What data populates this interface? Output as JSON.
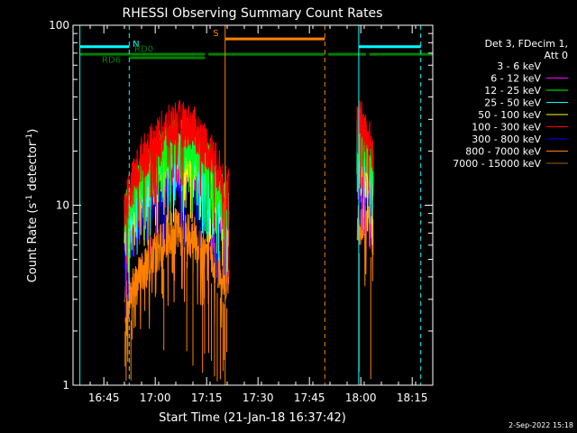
{
  "chart_data": {
    "type": "line",
    "title": "RHESSI Observing Summary Count Rates",
    "xlabel": "Start Time (21-Jan-18 16:37:42)",
    "ylabel_main": "Count Rate (s",
    "ylabel_sup": "-1",
    "ylabel_tail": " detector",
    "ylabel_sup2": "-1",
    "ylabel_end": ")",
    "ylim": [
      1,
      100
    ],
    "yscale": "log",
    "xlim_minutes": [
      -2,
      103
    ],
    "x_ticks": [
      {
        "t": 7,
        "label": "16:45"
      },
      {
        "t": 22,
        "label": "17:00"
      },
      {
        "t": 37,
        "label": "17:15"
      },
      {
        "t": 52,
        "label": "17:30"
      },
      {
        "t": 67,
        "label": "17:45"
      },
      {
        "t": 82,
        "label": "18:00"
      },
      {
        "t": 97,
        "label": "18:15"
      }
    ],
    "y_ticks": [
      {
        "v": 1,
        "label": "1"
      },
      {
        "v": 10,
        "label": "10"
      },
      {
        "v": 100,
        "label": "100"
      }
    ],
    "legend": {
      "header1": "Det 3, FDecim 1,",
      "header2": "Att 0",
      "entries": [
        {
          "label": "3 - 6 keV",
          "color": "#000000"
        },
        {
          "label": "6 - 12 keV",
          "color": "#ff00ff"
        },
        {
          "label": "12 - 25 keV",
          "color": "#00ff00"
        },
        {
          "label": "25 - 50 keV",
          "color": "#00ffff"
        },
        {
          "label": "50 - 100 keV",
          "color": "#ffff00"
        },
        {
          "label": "100 - 300 keV",
          "color": "#ff0000"
        },
        {
          "label": "300 - 800 keV",
          "color": "#0000ff"
        },
        {
          "label": "800 - 7000 keV",
          "color": "#ff8000"
        },
        {
          "label": "7000 - 15000 keV",
          "color": "#a06000"
        }
      ]
    },
    "segments": [
      {
        "start": 13.0,
        "end": 43.5
      },
      {
        "start": 80.9,
        "end": 85.6
      }
    ],
    "series": [
      {
        "color": "#ff8000",
        "seg1": [
          [
            13,
            2.8
          ],
          [
            18,
            4.2
          ],
          [
            24,
            6.2
          ],
          [
            28,
            7.2
          ],
          [
            33,
            6.8
          ],
          [
            38,
            5.4
          ],
          [
            43,
            3.8
          ]
        ],
        "seg2": [
          [
            81,
            7.5
          ],
          [
            83,
            8.5
          ],
          [
            85.5,
            7.0
          ]
        ]
      },
      {
        "color": "#0000ff",
        "seg1": [
          [
            13,
            5.2
          ],
          [
            18,
            9.5
          ],
          [
            24,
            13.0
          ],
          [
            28,
            14.8
          ],
          [
            33,
            13.8
          ],
          [
            38,
            10.5
          ],
          [
            43,
            6.2
          ]
        ],
        "seg2": [
          [
            81,
            15.5
          ],
          [
            83,
            14.0
          ],
          [
            85.5,
            11.0
          ]
        ]
      },
      {
        "color": "#ff00ff",
        "seg1": [
          [
            13,
            6.5
          ],
          [
            18,
            11.5
          ],
          [
            24,
            15.5
          ],
          [
            28,
            17.5
          ],
          [
            33,
            16.5
          ],
          [
            38,
            12.5
          ],
          [
            43,
            7.5
          ]
        ],
        "seg2": [
          [
            81,
            18.0
          ],
          [
            83,
            16.5
          ],
          [
            85.5,
            13.0
          ]
        ]
      },
      {
        "color": "#ffff00",
        "seg1": [
          [
            13,
            7.5
          ],
          [
            18,
            13.0
          ],
          [
            24,
            17.5
          ],
          [
            28,
            19.5
          ],
          [
            33,
            18.5
          ],
          [
            38,
            14.0
          ],
          [
            43,
            8.5
          ]
        ],
        "seg2": [
          [
            81,
            20.0
          ],
          [
            83,
            18.5
          ],
          [
            85.5,
            14.5
          ]
        ]
      },
      {
        "color": "#00ffff",
        "seg1": [
          [
            13,
            8.0
          ],
          [
            18,
            14.0
          ],
          [
            24,
            19.0
          ],
          [
            28,
            21.0
          ],
          [
            33,
            20.0
          ],
          [
            38,
            15.0
          ],
          [
            43,
            9.0
          ]
        ],
        "seg2": [
          [
            81,
            22.0
          ],
          [
            83,
            20.0
          ],
          [
            85.5,
            15.5
          ]
        ]
      },
      {
        "color": "#00ff00",
        "seg1": [
          [
            13,
            8.5
          ],
          [
            18,
            15.0
          ],
          [
            24,
            20.0
          ],
          [
            28,
            22.5
          ],
          [
            33,
            21.5
          ],
          [
            38,
            16.0
          ],
          [
            43,
            9.5
          ]
        ],
        "seg2": [
          [
            81,
            23.5
          ],
          [
            83,
            21.0
          ],
          [
            85.5,
            16.5
          ]
        ]
      },
      {
        "color": "#ff0000",
        "seg1": [
          [
            13,
            10.0
          ],
          [
            18,
            18.0
          ],
          [
            24,
            25.0
          ],
          [
            28,
            29.0
          ],
          [
            33,
            27.0
          ],
          [
            38,
            20.0
          ],
          [
            43,
            12.0
          ]
        ],
        "seg2": [
          [
            81,
            30.0
          ],
          [
            83,
            27.0
          ],
          [
            85.5,
            20.0
          ]
        ]
      }
    ],
    "spikes": [
      {
        "t": 42.6,
        "v": 16.5
      },
      {
        "t": 43.3,
        "v": 16.0
      }
    ],
    "vlines": [
      {
        "t": 0.0,
        "color": "#00ffff",
        "style": "solid"
      },
      {
        "t": 14.4,
        "color": "#00ffff",
        "style": "dashed"
      },
      {
        "t": 42.4,
        "color": "#ff8000",
        "style": "solid"
      },
      {
        "t": 71.5,
        "color": "#ff8000",
        "style": "dashed"
      },
      {
        "t": 81.4,
        "color": "#00ffff",
        "style": "solid"
      },
      {
        "t": 99.5,
        "color": "#00ffff",
        "style": "dashed"
      }
    ],
    "flags": [
      {
        "color": "#00ffff",
        "y": 76,
        "intervals": [
          [
            0,
            14.4
          ],
          [
            81.4,
            99.5
          ]
        ]
      },
      {
        "color": "#ff8000",
        "y": 84,
        "intervals": [
          [
            42.4,
            71.5
          ]
        ]
      },
      {
        "color": "#008000",
        "y": 69,
        "intervals": [
          [
            0,
            36.5
          ],
          [
            37.5,
            71.5
          ],
          [
            72.5,
            83.5
          ],
          [
            84.5,
            103
          ]
        ]
      },
      {
        "color": "#008000",
        "y": 66,
        "intervals": [
          [
            14.4,
            36.5
          ]
        ]
      }
    ],
    "flag_labels": [
      {
        "text": "N",
        "color": "#00ffff",
        "t": 16.4,
        "y": 76
      },
      {
        "text": "RD0",
        "color": "#008000",
        "t": 18.7,
        "y": 71
      },
      {
        "text": "RD6",
        "color": "#008000",
        "t": 9.2,
        "y": 62
      },
      {
        "text": "S",
        "color": "#ff8000",
        "t": 39.7,
        "y": 87
      }
    ],
    "timestamp": "2-Sep-2022 15:18"
  }
}
